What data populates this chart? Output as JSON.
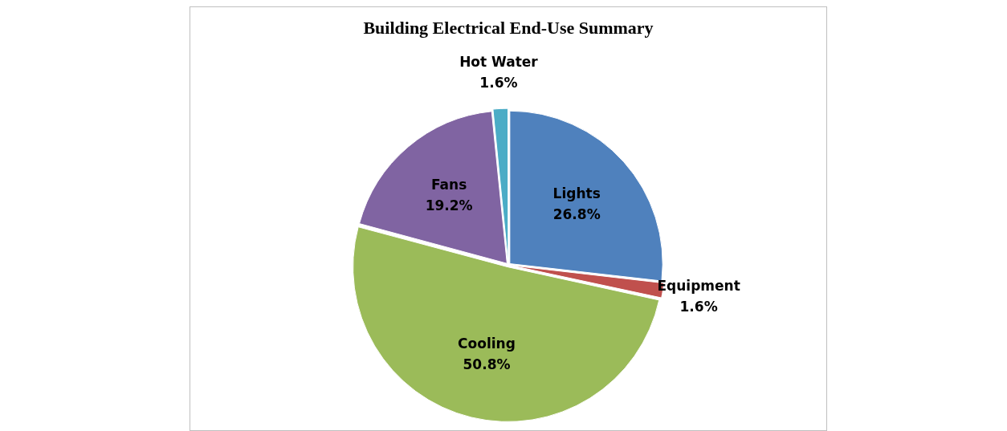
{
  "chart_data": {
    "type": "pie",
    "title": "Building Electrical End-Use Summary",
    "categories": [
      "Lights",
      "Equipment",
      "Cooling",
      "Fans",
      "Hot Water"
    ],
    "values": [
      26.8,
      1.6,
      50.8,
      19.2,
      1.6
    ],
    "value_labels": [
      "26.8%",
      "1.6%",
      "50.8%",
      "19.2%",
      "1.6%"
    ],
    "colors": [
      "#4f81bd",
      "#c0504d",
      "#9bbb59",
      "#8064a2",
      "#4bacc6"
    ],
    "legend": false
  }
}
